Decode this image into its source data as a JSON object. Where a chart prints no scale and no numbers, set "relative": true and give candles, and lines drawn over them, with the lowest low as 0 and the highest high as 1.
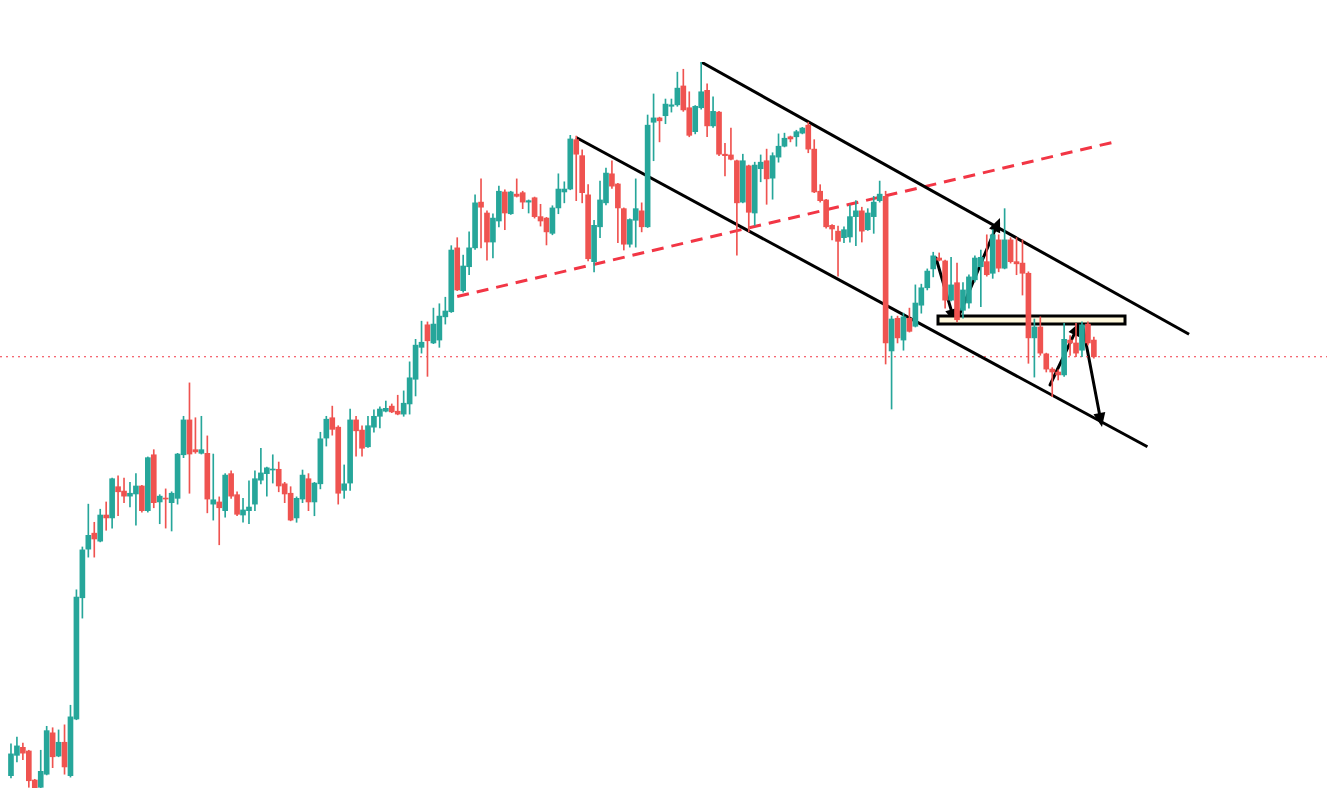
{
  "chart_data": {
    "type": "candlestick",
    "relative": true,
    "categories": [
      null,
      null,
      null,
      null,
      null,
      null,
      null,
      null,
      null,
      null,
      null,
      null,
      null,
      null,
      null,
      null,
      null,
      null,
      null,
      null,
      null,
      null,
      null,
      null,
      null,
      null,
      null,
      null,
      null,
      null,
      null,
      null,
      null,
      null,
      null,
      null,
      null,
      null,
      null,
      null,
      null,
      null,
      null,
      null,
      null,
      null,
      null,
      null,
      null,
      null,
      null,
      null,
      null,
      null,
      null,
      null,
      null,
      null,
      null,
      null,
      null,
      null,
      null,
      null,
      null,
      null,
      null,
      null,
      null,
      null,
      null,
      null,
      null,
      null,
      null,
      null,
      null,
      null,
      null,
      null,
      null,
      null,
      null,
      null,
      null,
      null,
      null,
      null,
      null,
      null,
      null,
      null,
      null,
      null,
      null,
      null,
      null,
      null,
      null,
      null,
      null,
      null,
      null,
      null,
      null,
      null,
      null,
      null,
      null,
      null,
      null,
      null,
      null,
      null,
      null,
      null,
      null,
      null,
      null,
      null,
      null,
      null,
      null,
      null,
      null,
      null,
      null,
      null,
      null,
      null,
      null,
      null,
      null,
      null,
      null,
      null,
      null,
      null,
      null,
      null,
      null,
      null,
      null,
      null,
      null,
      null,
      null,
      null,
      null,
      null,
      null,
      null,
      null,
      null,
      null,
      null,
      null,
      null,
      null,
      null,
      null,
      null,
      null,
      null,
      null,
      null,
      null,
      null,
      null,
      null,
      null,
      null,
      null,
      null,
      null,
      null,
      null,
      null,
      null,
      null,
      null,
      null,
      null,
      null,
      null,
      null,
      null,
      null,
      null,
      null,
      null,
      null,
      null,
      null,
      null,
      null,
      null,
      null,
      null,
      null
    ],
    "ohlc": [
      [
        0.017,
        0.061,
        0.014,
        0.047
      ],
      [
        0.045,
        0.07,
        0.036,
        0.058
      ],
      [
        0.056,
        0.062,
        0.039,
        0.048
      ],
      [
        0.051,
        0.052,
        0.001,
        0.01
      ],
      [
        0.011,
        0.012,
        0,
        0
      ],
      [
        0.001,
        0.052,
        0,
        0.023
      ],
      [
        0.019,
        0.085,
        0.018,
        0.079
      ],
      [
        0.076,
        0.083,
        0.028,
        0.043
      ],
      [
        0.044,
        0.08,
        0.043,
        0.063
      ],
      [
        0.063,
        0.087,
        0.019,
        0.029
      ],
      [
        0.017,
        0.114,
        0.015,
        0.098
      ],
      [
        0.095,
        0.273,
        0.094,
        0.263
      ],
      [
        0.262,
        0.332,
        0.234,
        0.328
      ],
      [
        0.329,
        0.391,
        0.318,
        0.348
      ],
      [
        0.351,
        0.366,
        0.318,
        0.343
      ],
      [
        0.34,
        0.384,
        0.339,
        0.376
      ],
      [
        0.376,
        0.394,
        0.355,
        0.372
      ],
      [
        0.372,
        0.427,
        0.358,
        0.426
      ],
      [
        0.415,
        0.43,
        0.375,
        0.408
      ],
      [
        0.409,
        0.427,
        0.393,
        0.402
      ],
      [
        0.402,
        0.421,
        0.387,
        0.406
      ],
      [
        0.405,
        0.433,
        0.362,
        0.416
      ],
      [
        0.416,
        0.417,
        0.38,
        0.382
      ],
      [
        0.382,
        0.456,
        0.38,
        0.455
      ],
      [
        0.459,
        0.466,
        0.386,
        0.393
      ],
      [
        0.394,
        0.404,
        0.364,
        0.402
      ],
      [
        0.399,
        0.412,
        0.358,
        0.398
      ],
      [
        0.393,
        0.408,
        0.354,
        0.406
      ],
      [
        0.399,
        0.461,
        0.391,
        0.46
      ],
      [
        0.459,
        0.512,
        0.455,
        0.507
      ],
      [
        0.507,
        0.558,
        0.406,
        0.46
      ],
      [
        0.466,
        0.51,
        0.461,
        0.463
      ],
      [
        0.461,
        0.512,
        0.46,
        0.466
      ],
      [
        0.461,
        0.485,
        0.379,
        0.398
      ],
      [
        0.391,
        0.46,
        0.369,
        0.397
      ],
      [
        0.394,
        0.401,
        0.335,
        0.386
      ],
      [
        0.382,
        0.433,
        0.373,
        0.431
      ],
      [
        0.433,
        0.437,
        0.399,
        0.402
      ],
      [
        0.404,
        0.408,
        0.375,
        0.377
      ],
      [
        0.376,
        0.399,
        0.366,
        0.383
      ],
      [
        0.382,
        0.423,
        0.364,
        0.387
      ],
      [
        0.391,
        0.437,
        0.382,
        0.426
      ],
      [
        0.424,
        0.468,
        0.419,
        0.434
      ],
      [
        0.433,
        0.442,
        0.402,
        0.441
      ],
      [
        0.438,
        0.459,
        0.42,
        0.439
      ],
      [
        0.439,
        0.449,
        0.408,
        0.416
      ],
      [
        0.419,
        0.421,
        0.393,
        0.405
      ],
      [
        0.406,
        0.415,
        0.368,
        0.369
      ],
      [
        0.372,
        0.401,
        0.366,
        0.399
      ],
      [
        0.398,
        0.438,
        0.393,
        0.431
      ],
      [
        0.426,
        0.433,
        0.382,
        0.394
      ],
      [
        0.394,
        0.421,
        0.375,
        0.42
      ],
      [
        0.419,
        0.49,
        0.412,
        0.481
      ],
      [
        0.482,
        0.512,
        0.471,
        0.508
      ],
      [
        0.51,
        0.526,
        0.486,
        0.494
      ],
      [
        0.497,
        0.499,
        0.391,
        0.406
      ],
      [
        0.41,
        0.445,
        0.399,
        0.419
      ],
      [
        0.42,
        0.522,
        0.41,
        0.507
      ],
      [
        0.507,
        0.512,
        0.457,
        0.492
      ],
      [
        0.493,
        0.499,
        0.457,
        0.468
      ],
      [
        0.47,
        0.512,
        0.469,
        0.499
      ],
      [
        0.497,
        0.521,
        0.49,
        0.512
      ],
      [
        0.512,
        0.525,
        0.496,
        0.522
      ],
      [
        0.519,
        0.533,
        0.518,
        0.523
      ],
      [
        0.526,
        0.529,
        0.517,
        0.518
      ],
      [
        0.519,
        0.541,
        0.514,
        0.515
      ],
      [
        0.515,
        0.547,
        0.512,
        0.53
      ],
      [
        0.529,
        0.587,
        0.515,
        0.565
      ],
      [
        0.563,
        0.618,
        0.54,
        0.61
      ],
      [
        0.607,
        0.643,
        0.599,
        0.614
      ],
      [
        0.638,
        0.642,
        0.567,
        0.616
      ],
      [
        0.613,
        0.661,
        0.612,
        0.639
      ],
      [
        0.617,
        0.667,
        0.607,
        0.65
      ],
      [
        0.649,
        0.676,
        0.639,
        0.657
      ],
      [
        0.656,
        0.747,
        0.655,
        0.741
      ],
      [
        0.744,
        0.758,
        0.685,
        0.686
      ],
      [
        0.685,
        0.734,
        0.683,
        0.719
      ],
      [
        0.718,
        0.766,
        0.707,
        0.744
      ],
      [
        0.744,
        0.817,
        0.742,
        0.806
      ],
      [
        0.807,
        0.839,
        0.744,
        0.8
      ],
      [
        0.792,
        0.795,
        0.727,
        0.752
      ],
      [
        0.752,
        0.791,
        0.73,
        0.785
      ],
      [
        0.781,
        0.829,
        0.773,
        0.822
      ],
      [
        0.821,
        0.824,
        0.769,
        0.792
      ],
      [
        0.791,
        0.822,
        0.79,
        0.821
      ],
      [
        0.818,
        0.839,
        0.814,
        0.815
      ],
      [
        0.82,
        0.822,
        0.798,
        0.807
      ],
      [
        0.807,
        0.81,
        0.792,
        0.809
      ],
      [
        0.813,
        0.814,
        0.785,
        0.787
      ],
      [
        0.787,
        0.804,
        0.774,
        0.781
      ],
      [
        0.785,
        0.786,
        0.748,
        0.766
      ],
      [
        0.764,
        0.802,
        0.762,
        0.799
      ],
      [
        0.799,
        0.846,
        0.791,
        0.825
      ],
      [
        0.821,
        0.835,
        0.806,
        0.825
      ],
      [
        0.825,
        0.899,
        0.824,
        0.894
      ],
      [
        0.893,
        0.898,
        0.809,
        0.873
      ],
      [
        0.871,
        0.879,
        0.806,
        0.82
      ],
      [
        0.817,
        0.831,
        0.726,
        0.729
      ],
      [
        0.725,
        0.782,
        0.711,
        0.775
      ],
      [
        0.773,
        0.836,
        0.758,
        0.81
      ],
      [
        0.806,
        0.854,
        0.803,
        0.847
      ],
      [
        0.846,
        0.864,
        0.826,
        0.829
      ],
      [
        0.832,
        0.833,
        0.751,
        0.799
      ],
      [
        0.798,
        0.799,
        0.741,
        0.749
      ],
      [
        0.749,
        0.784,
        0.745,
        0.783
      ],
      [
        0.782,
        0.839,
        0.745,
        0.798
      ],
      [
        0.795,
        0.806,
        0.766,
        0.773
      ],
      [
        0.773,
        0.927,
        0.772,
        0.913
      ],
      [
        0.917,
        0.956,
        0.864,
        0.923
      ],
      [
        0.923,
        0.924,
        0.89,
        0.919
      ],
      [
        0.926,
        0.949,
        0.915,
        0.942
      ],
      [
        0.939,
        0.949,
        0.931,
        0.941
      ],
      [
        0.941,
        0.986,
        0.939,
        0.964
      ],
      [
        0.967,
        0.99,
        0.932,
        0.934
      ],
      [
        0.937,
        0.959,
        0.897,
        0.899
      ],
      [
        0.904,
        0.94,
        0.901,
        0.939
      ],
      [
        0.937,
        1,
        0.935,
        0.959
      ],
      [
        0.961,
        0.97,
        0.897,
        0.912
      ],
      [
        0.912,
        0.952,
        0.91,
        0.932
      ],
      [
        0.931,
        0.932,
        0.871,
        0.873
      ],
      [
        0.873,
        0.888,
        0.843,
        0.871
      ],
      [
        0.872,
        0.909,
        0.865,
        0.866
      ],
      [
        0.864,
        0.865,
        0.734,
        0.806
      ],
      [
        0.807,
        0.873,
        0.806,
        0.864
      ],
      [
        0.857,
        0.858,
        0.766,
        0.793
      ],
      [
        0.792,
        0.862,
        0.775,
        0.858
      ],
      [
        0.853,
        0.872,
        0.835,
        0.862
      ],
      [
        0.864,
        0.88,
        0.804,
        0.839
      ],
      [
        0.84,
        0.875,
        0.811,
        0.871
      ],
      [
        0.869,
        0.901,
        0.862,
        0.884
      ],
      [
        0.884,
        0.902,
        0.883,
        0.895
      ],
      [
        0.897,
        0.898,
        0.89,
        0.894
      ],
      [
        0.897,
        0.906,
        0.884,
        0.904
      ],
      [
        0.902,
        0.91,
        0.901,
        0.909
      ],
      [
        0.913,
        0.917,
        0.875,
        0.88
      ],
      [
        0.88,
        0.893,
        0.82,
        0.821
      ],
      [
        0.822,
        0.831,
        0.807,
        0.809
      ],
      [
        0.81,
        0.811,
        0.771,
        0.773
      ],
      [
        0.775,
        0.776,
        0.755,
        0.77
      ],
      [
        0.767,
        0.774,
        0.705,
        0.753
      ],
      [
        0.758,
        0.773,
        0.751,
        0.769
      ],
      [
        0.759,
        0.803,
        0.752,
        0.787
      ],
      [
        0.787,
        0.809,
        0.747,
        0.795
      ],
      [
        0.795,
        0.8,
        0.752,
        0.767
      ],
      [
        0.769,
        0.798,
        0.768,
        0.792
      ],
      [
        0.787,
        0.815,
        0.764,
        0.807
      ],
      [
        0.809,
        0.836,
        0.807,
        0.818
      ],
      [
        0.815,
        0.822,
        0.584,
        0.613
      ],
      [
        0.602,
        0.65,
        0.522,
        0.646
      ],
      [
        0.647,
        0.65,
        0.613,
        0.62
      ],
      [
        0.617,
        0.654,
        0.603,
        0.649
      ],
      [
        0.647,
        0.661,
        0.628,
        0.629
      ],
      [
        0.636,
        0.693,
        0.635,
        0.668
      ],
      [
        0.665,
        0.694,
        0.654,
        0.689
      ],
      [
        0.689,
        0.715,
        0.686,
        0.712
      ],
      [
        0.715,
        0.738,
        0.704,
        0.733
      ],
      [
        0.73,
        0.737,
        0.726,
        0.727
      ],
      [
        0.726,
        0.727,
        0.661,
        0.672
      ],
      [
        0.672,
        0.731,
        0.671,
        0.693
      ],
      [
        0.696,
        0.723,
        0.642,
        0.645
      ],
      [
        0.658,
        0.696,
        0.647,
        0.686
      ],
      [
        0.668,
        0.707,
        0.661,
        0.704
      ],
      [
        0.7,
        0.733,
        0.697,
        0.73
      ],
      [
        0.718,
        0.741,
        0.663,
        0.731
      ],
      [
        0.725,
        0.762,
        0.705,
        0.707
      ],
      [
        0.709,
        0.769,
        0.702,
        0.762
      ],
      [
        0.755,
        0.762,
        0.711,
        0.716
      ],
      [
        0.716,
        0.798,
        0.715,
        0.755
      ],
      [
        0.755,
        0.758,
        0.723,
        0.725
      ],
      [
        0.725,
        0.758,
        0.707,
        0.722
      ],
      [
        0.723,
        0.755,
        0.679,
        0.709
      ],
      [
        0.709,
        0.711,
        0.585,
        0.62
      ],
      [
        0.62,
        0.646,
        0.566,
        0.635
      ],
      [
        0.635,
        0.649,
        0.596,
        0.599
      ],
      [
        0.598,
        0.599,
        0.573,
        0.577
      ],
      [
        0.577,
        0.579,
        0.539,
        0.573
      ],
      [
        0.573,
        0.576,
        0.562,
        0.569
      ],
      [
        0.569,
        0.64,
        0.567,
        0.618
      ],
      [
        0.617,
        0.623,
        0.596,
        0.613
      ],
      [
        0.613,
        0.64,
        0.594,
        0.599
      ],
      [
        0.603,
        0.642,
        0.594,
        0.638
      ],
      [
        0.639,
        0.642,
        0.61,
        0.613
      ],
      [
        0.617,
        0.621,
        0.592,
        0.594
      ],
      null,
      null,
      null,
      null,
      null,
      null,
      null,
      null,
      null,
      null,
      null,
      null,
      null,
      null,
      null,
      null,
      null
    ],
    "series": [
      {
        "type": "line",
        "color": "#000000",
        "values": [
          null,
          null,
          null,
          null,
          null,
          null,
          null,
          null,
          null,
          null,
          null,
          null,
          null,
          null,
          null,
          null,
          null,
          null,
          null,
          null,
          null,
          null,
          null,
          null,
          null,
          null,
          null,
          null,
          null,
          null,
          null,
          null,
          null,
          null,
          null,
          null,
          null,
          null,
          null,
          null,
          null,
          null,
          null,
          null,
          null,
          null,
          null,
          null,
          null,
          null,
          null,
          null,
          null,
          null,
          null,
          null,
          null,
          null,
          null,
          null,
          null,
          null,
          null,
          null,
          null,
          null,
          null,
          null,
          null,
          null,
          null,
          null,
          null,
          null,
          null,
          null,
          null,
          null,
          null,
          null,
          null,
          null,
          null,
          null,
          null,
          null,
          null,
          null,
          null,
          null,
          null,
          null,
          null,
          null,
          null,
          null,
          null,
          null,
          null,
          null,
          null,
          null,
          null,
          null,
          null,
          null,
          null,
          null,
          null,
          null,
          null,
          null,
          null,
          null,
          null,
          null,
          1,
          null,
          null,
          null,
          null,
          null,
          null,
          null,
          null,
          null,
          null,
          null,
          null,
          null,
          null,
          null,
          null,
          null,
          null,
          null,
          null,
          null,
          null,
          null,
          null,
          null,
          null,
          null,
          null,
          null,
          null,
          null,
          null,
          null,
          null,
          null,
          null,
          null,
          null,
          null,
          null,
          null,
          null,
          null,
          null,
          null,
          null,
          null,
          null,
          null,
          null,
          null,
          null,
          null,
          null,
          null,
          null,
          null,
          null,
          null,
          null,
          null,
          null,
          null,
          null,
          null,
          null,
          null,
          null,
          null,
          null,
          null,
          null,
          null,
          null,
          null,
          null,
          null,
          null,
          null,
          null,
          null,
          0.625,
          null
        ]
      },
      {
        "type": "line",
        "color": "#000000",
        "values": [
          null,
          null,
          null,
          null,
          null,
          null,
          null,
          null,
          null,
          null,
          null,
          null,
          null,
          null,
          null,
          null,
          null,
          null,
          null,
          null,
          null,
          null,
          null,
          null,
          null,
          null,
          null,
          null,
          null,
          null,
          null,
          null,
          null,
          null,
          null,
          null,
          null,
          null,
          null,
          null,
          null,
          null,
          null,
          null,
          null,
          null,
          null,
          null,
          null,
          null,
          null,
          null,
          null,
          null,
          null,
          null,
          null,
          null,
          null,
          null,
          null,
          null,
          null,
          null,
          null,
          null,
          null,
          null,
          null,
          null,
          null,
          null,
          null,
          null,
          null,
          null,
          null,
          null,
          null,
          null,
          null,
          null,
          null,
          null,
          null,
          null,
          null,
          null,
          null,
          null,
          null,
          null,
          null,
          null,
          null,
          0.896,
          null,
          null,
          null,
          null,
          null,
          null,
          null,
          null,
          null,
          null,
          null,
          null,
          null,
          null,
          null,
          null,
          null,
          null,
          null,
          null,
          null,
          null,
          null,
          null,
          null,
          null,
          null,
          null,
          null,
          null,
          null,
          null,
          null,
          null,
          null,
          null,
          null,
          null,
          null,
          null,
          null,
          null,
          null,
          null,
          null,
          null,
          null,
          null,
          null,
          null,
          null,
          null,
          null,
          null,
          null,
          null,
          null,
          null,
          null,
          null,
          null,
          null,
          null,
          null,
          null,
          null,
          null,
          null,
          null,
          null,
          null,
          null,
          null,
          null,
          null,
          null,
          null,
          null,
          null,
          null,
          null,
          null,
          null,
          null,
          null,
          null,
          null,
          null,
          null,
          null,
          null,
          null,
          null,
          null,
          null,
          0.47,
          null,
          null,
          null,
          null,
          null,
          null,
          null,
          null
        ]
      },
      {
        "type": "line",
        "color": "#f23645",
        "line_style": "dashed",
        "values": [
          null,
          null,
          null,
          null,
          null,
          null,
          null,
          null,
          null,
          null,
          null,
          null,
          null,
          null,
          null,
          null,
          null,
          null,
          null,
          null,
          null,
          null,
          null,
          null,
          null,
          null,
          null,
          null,
          null,
          null,
          null,
          null,
          null,
          null,
          null,
          null,
          null,
          null,
          null,
          null,
          null,
          null,
          null,
          null,
          null,
          null,
          null,
          null,
          null,
          null,
          null,
          null,
          null,
          null,
          null,
          null,
          null,
          null,
          null,
          null,
          null,
          null,
          null,
          null,
          null,
          null,
          null,
          null,
          null,
          null,
          null,
          null,
          null,
          null,
          null,
          0.677,
          null,
          null,
          null,
          null,
          null,
          null,
          null,
          null,
          null,
          null,
          null,
          null,
          null,
          null,
          null,
          null,
          null,
          null,
          null,
          null,
          null,
          null,
          null,
          null,
          null,
          null,
          null,
          null,
          null,
          null,
          null,
          null,
          null,
          null,
          null,
          null,
          null,
          null,
          null,
          null,
          null,
          null,
          null,
          null,
          null,
          null,
          null,
          null,
          null,
          null,
          null,
          null,
          null,
          null,
          null,
          null,
          null,
          null,
          null,
          null,
          null,
          null,
          null,
          null,
          null,
          null,
          null,
          null,
          null,
          null,
          null,
          null,
          null,
          null,
          null,
          null,
          null,
          null,
          null,
          null,
          null,
          null,
          null,
          null,
          null,
          null,
          null,
          null,
          null,
          null,
          null,
          null,
          null,
          null,
          null,
          null,
          null,
          null,
          null,
          null,
          null,
          null,
          null,
          null,
          null,
          null,
          null,
          null,
          null,
          0.889,
          null,
          null,
          null,
          null,
          null,
          null,
          null,
          null,
          null,
          null,
          null,
          null,
          null,
          null
        ]
      }
    ],
    "ref_lines": [
      {
        "axis": "y",
        "value": 0.594,
        "color": "#f23645",
        "line_style": "dotted"
      }
    ],
    "bands": [
      {
        "axis": "y",
        "from": 0.639,
        "to": 0.65,
        "color": "#fff8dc"
      }
    ]
  }
}
